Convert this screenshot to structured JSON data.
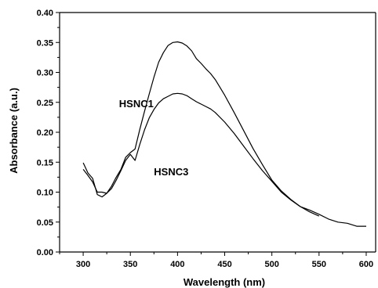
{
  "chart_data": {
    "type": "line",
    "title": "",
    "xlabel": "Wavelength (nm)",
    "ylabel": "Absorbance (a.u.)",
    "xlim": [
      275,
      610
    ],
    "ylim": [
      0.0,
      0.4
    ],
    "x_ticks": [
      300,
      350,
      400,
      450,
      500,
      550,
      600
    ],
    "x_tick_labels": [
      "300",
      "350",
      "400",
      "450",
      "500",
      "550",
      "600"
    ],
    "y_ticks": [
      0.0,
      0.05,
      0.1,
      0.15,
      0.2,
      0.25,
      0.3,
      0.35,
      0.4
    ],
    "y_tick_labels": [
      "0.00",
      "0.05",
      "0.10",
      "0.15",
      "0.20",
      "0.25",
      "0.30",
      "0.35",
      "0.40"
    ],
    "grid": false,
    "legend": "none",
    "line_color": "#000000",
    "series": [
      {
        "name": "HSNC1",
        "x": [
          300,
          305,
          310,
          315,
          320,
          325,
          330,
          335,
          340,
          345,
          350,
          355,
          360,
          365,
          370,
          375,
          380,
          385,
          390,
          395,
          400,
          405,
          410,
          415,
          420,
          425,
          430,
          435,
          440,
          450,
          460,
          470,
          480,
          490,
          500,
          510,
          520,
          530,
          540,
          550
        ],
        "y": [
          0.149,
          0.132,
          0.123,
          0.096,
          0.092,
          0.098,
          0.11,
          0.125,
          0.138,
          0.158,
          0.166,
          0.172,
          0.205,
          0.235,
          0.264,
          0.292,
          0.317,
          0.333,
          0.345,
          0.35,
          0.351,
          0.349,
          0.344,
          0.336,
          0.323,
          0.315,
          0.306,
          0.298,
          0.288,
          0.262,
          0.233,
          0.203,
          0.173,
          0.146,
          0.12,
          0.102,
          0.088,
          0.076,
          0.067,
          0.06
        ]
      },
      {
        "name": "HSNC3",
        "x": [
          300,
          305,
          310,
          315,
          320,
          325,
          330,
          335,
          340,
          345,
          350,
          355,
          360,
          365,
          370,
          375,
          380,
          385,
          390,
          395,
          400,
          405,
          410,
          415,
          420,
          425,
          430,
          435,
          440,
          450,
          460,
          470,
          480,
          490,
          500,
          510,
          520,
          530,
          540,
          550,
          560,
          570,
          580,
          590,
          600
        ],
        "y": [
          0.138,
          0.128,
          0.117,
          0.1,
          0.1,
          0.098,
          0.106,
          0.12,
          0.136,
          0.153,
          0.163,
          0.153,
          0.18,
          0.204,
          0.224,
          0.238,
          0.249,
          0.256,
          0.26,
          0.264,
          0.265,
          0.264,
          0.261,
          0.256,
          0.251,
          0.247,
          0.243,
          0.239,
          0.233,
          0.217,
          0.198,
          0.177,
          0.156,
          0.136,
          0.118,
          0.1,
          0.087,
          0.076,
          0.07,
          0.063,
          0.055,
          0.05,
          0.048,
          0.043,
          0.043
        ]
      }
    ],
    "annotations": [
      {
        "text": "HSNC1",
        "x": 338,
        "y": 0.242
      },
      {
        "text": "HSNC3",
        "x": 375,
        "y": 0.128
      }
    ]
  }
}
